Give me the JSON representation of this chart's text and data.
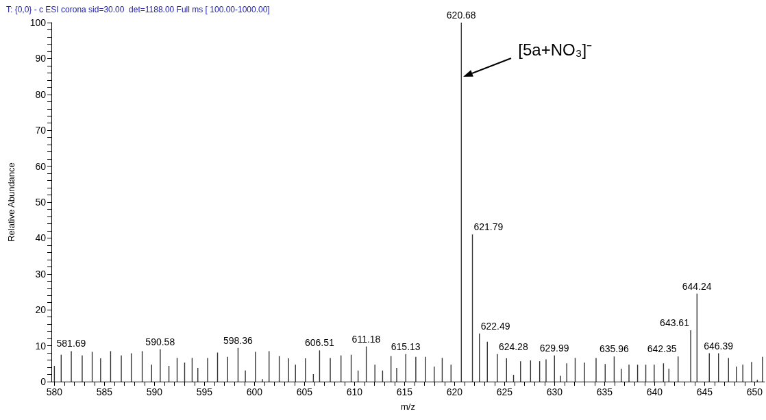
{
  "chart_data": {
    "type": "bar",
    "title": "T: {0,0} - c ESI corona sid=30.00  det=1188.00 Full ms [ 100.00-1000.00]",
    "xlabel": "m/z",
    "ylabel": "Relative Abundance",
    "annotations": [
      "[5a+NO₃]⁻",
      {
        "text": "581.69",
        "x": 581.69,
        "y": 8.5
      },
      {
        "text": "590.58",
        "x": 590.58,
        "y": 9.0
      },
      {
        "text": "598.36",
        "x": 598.36,
        "y": 9.4
      },
      {
        "text": "606.51",
        "x": 606.51,
        "y": 8.7
      },
      {
        "text": "611.18",
        "x": 611.18,
        "y": 9.8
      },
      {
        "text": "615.13",
        "x": 615.13,
        "y": 7.7
      },
      {
        "text": "620.68",
        "x": 620.68,
        "y": 100
      },
      {
        "text": "621.79",
        "x": 621.79,
        "y": 41
      },
      {
        "text": "622.49",
        "x": 622.49,
        "y": 13.4
      },
      {
        "text": "624.28",
        "x": 624.28,
        "y": 7.7
      },
      {
        "text": "629.99",
        "x": 629.99,
        "y": 7.3
      },
      {
        "text": "635.96",
        "x": 635.96,
        "y": 7.0
      },
      {
        "text": "642.35",
        "x": 642.35,
        "y": 7.0
      },
      {
        "text": "643.61",
        "x": 643.61,
        "y": 14.3
      },
      {
        "text": "644.24",
        "x": 644.24,
        "y": 24.5
      },
      {
        "text": "646.39",
        "x": 646.39,
        "y": 7.9
      }
    ],
    "x": [
      580.0,
      580.68,
      581.69,
      582.78,
      583.78,
      584.62,
      585.62,
      586.69,
      587.69,
      588.78,
      589.72,
      590.58,
      591.45,
      592.27,
      593.02,
      593.77,
      594.34,
      595.32,
      596.31,
      597.32,
      598.36,
      599.09,
      600.1,
      600.8,
      601.46,
      602.48,
      603.41,
      604.1,
      605.1,
      605.89,
      606.51,
      607.58,
      608.65,
      609.67,
      610.36,
      611.18,
      612.04,
      612.81,
      613.65,
      614.22,
      615.13,
      616.13,
      617.11,
      617.97,
      618.77,
      619.65,
      620.68,
      621.79,
      622.49,
      623.28,
      624.28,
      625.2,
      625.9,
      626.6,
      627.6,
      628.51,
      629.15,
      629.99,
      630.6,
      631.22,
      632.06,
      632.99,
      634.15,
      635.06,
      635.96,
      636.67,
      637.44,
      638.3,
      639.12,
      639.96,
      640.89,
      641.43,
      642.35,
      643.61,
      644.24,
      645.47,
      646.39,
      647.39,
      648.17,
      648.82,
      649.7,
      650.27,
      650.79
    ],
    "values": [
      4.4,
      7.5,
      8.5,
      7.3,
      8.3,
      6.5,
      8.5,
      7.3,
      7.9,
      8.5,
      4.7,
      9.0,
      4.4,
      6.6,
      5.3,
      6.6,
      3.8,
      6.6,
      8.1,
      6.9,
      9.4,
      3.1,
      8.3,
      0.7,
      8.5,
      7.1,
      6.5,
      4.7,
      6.5,
      2.1,
      8.7,
      6.6,
      7.3,
      7.5,
      3.1,
      9.8,
      4.7,
      3.1,
      7.1,
      3.8,
      7.7,
      6.9,
      6.9,
      4.2,
      6.6,
      4.7,
      100,
      41,
      13.4,
      11.1,
      7.7,
      6.5,
      1.9,
      5.7,
      5.9,
      5.7,
      6.2,
      7.3,
      1.6,
      5.1,
      6.6,
      5.3,
      6.6,
      4.9,
      7.0,
      3.6,
      4.7,
      4.7,
      4.7,
      4.7,
      5.1,
      3.6,
      7.0,
      14.3,
      24.5,
      7.9,
      7.9,
      6.6,
      4.2,
      4.7,
      5.5,
      0.5,
      6.9
    ],
    "color": "#333333",
    "xlim": [
      579.7,
      651
    ],
    "xticks": [
      580,
      {
        "value": 581,
        "label": null
      },
      {
        "value": 582,
        "label": null
      },
      {
        "value": 583,
        "label": null
      },
      {
        "value": 584,
        "label": null
      },
      585,
      {
        "value": 586,
        "label": null
      },
      {
        "value": 587,
        "label": null
      },
      {
        "value": 588,
        "label": null
      },
      {
        "value": 589,
        "label": null
      },
      590,
      {
        "value": 591,
        "label": null
      },
      {
        "value": 592,
        "label": null
      },
      {
        "value": 593,
        "label": null
      },
      {
        "value": 594,
        "label": null
      },
      595,
      {
        "value": 596,
        "label": null
      },
      {
        "value": 597,
        "label": null
      },
      {
        "value": 598,
        "label": null
      },
      {
        "value": 599,
        "label": null
      },
      600,
      {
        "value": 601,
        "label": null
      },
      {
        "value": 602,
        "label": null
      },
      {
        "value": 603,
        "label": null
      },
      {
        "value": 604,
        "label": null
      },
      605,
      {
        "value": 606,
        "label": null
      },
      {
        "value": 607,
        "label": null
      },
      {
        "value": 608,
        "label": null
      },
      {
        "value": 609,
        "label": null
      },
      610,
      {
        "value": 611,
        "label": null
      },
      {
        "value": 612,
        "label": null
      },
      {
        "value": 613,
        "label": null
      },
      {
        "value": 614,
        "label": null
      },
      615,
      {
        "value": 616,
        "label": null
      },
      {
        "value": 617,
        "label": null
      },
      {
        "value": 618,
        "label": null
      },
      {
        "value": 619,
        "label": null
      },
      620,
      {
        "value": 621,
        "label": null
      },
      {
        "value": 622,
        "label": null
      },
      {
        "value": 623,
        "label": null
      },
      {
        "value": 624,
        "label": null
      },
      625,
      {
        "value": 626,
        "label": null
      },
      {
        "value": 627,
        "label": null
      },
      {
        "value": 628,
        "label": null
      },
      {
        "value": 629,
        "label": null
      },
      630,
      {
        "value": 631,
        "label": null
      },
      {
        "value": 632,
        "label": null
      },
      {
        "value": 633,
        "label": null
      },
      {
        "value": 634,
        "label": null
      },
      635,
      {
        "value": 636,
        "label": null
      },
      {
        "value": 637,
        "label": null
      },
      {
        "value": 638,
        "label": null
      },
      {
        "value": 639,
        "label": null
      },
      640,
      {
        "value": 641,
        "label": null
      },
      {
        "value": 642,
        "label": null
      },
      {
        "value": 643,
        "label": null
      },
      {
        "value": 644,
        "label": null
      },
      645,
      {
        "value": 646,
        "label": null
      },
      {
        "value": 647,
        "label": null
      },
      {
        "value": 648,
        "label": null
      },
      {
        "value": 649,
        "label": null
      },
      650
    ],
    "ylim": [
      0,
      100
    ],
    "yticks": [
      0,
      {
        "value": 2,
        "label": null
      },
      {
        "value": 4,
        "label": null
      },
      {
        "value": 6,
        "label": null
      },
      {
        "value": 8,
        "label": null
      },
      10,
      {
        "value": 12,
        "label": null
      },
      {
        "value": 14,
        "label": null
      },
      {
        "value": 16,
        "label": null
      },
      {
        "value": 18,
        "label": null
      },
      20,
      {
        "value": 22,
        "label": null
      },
      {
        "value": 24,
        "label": null
      },
      {
        "value": 26,
        "label": null
      },
      {
        "value": 28,
        "label": null
      },
      30,
      {
        "value": 32,
        "label": null
      },
      {
        "value": 34,
        "label": null
      },
      {
        "value": 36,
        "label": null
      },
      {
        "value": 38,
        "label": null
      },
      40,
      {
        "value": 42,
        "label": null
      },
      {
        "value": 44,
        "label": null
      },
      {
        "value": 46,
        "label": null
      },
      {
        "value": 48,
        "label": null
      },
      50,
      {
        "value": 52,
        "label": null
      },
      {
        "value": 54,
        "label": null
      },
      {
        "value": 56,
        "label": null
      },
      {
        "value": 58,
        "label": null
      },
      60,
      {
        "value": 62,
        "label": null
      },
      {
        "value": 64,
        "label": null
      },
      {
        "value": 66,
        "label": null
      },
      {
        "value": 68,
        "label": null
      },
      70,
      {
        "value": 72,
        "label": null
      },
      {
        "value": 74,
        "label": null
      },
      {
        "value": 76,
        "label": null
      },
      {
        "value": 78,
        "label": null
      },
      80,
      {
        "value": 82,
        "label": null
      },
      {
        "value": 84,
        "label": null
      },
      {
        "value": 86,
        "label": null
      },
      {
        "value": 88,
        "label": null
      },
      90,
      {
        "value": 92,
        "label": null
      },
      {
        "value": 94,
        "label": null
      },
      {
        "value": 96,
        "label": null
      },
      {
        "value": 98,
        "label": null
      },
      100
    ],
    "grid": false
  }
}
